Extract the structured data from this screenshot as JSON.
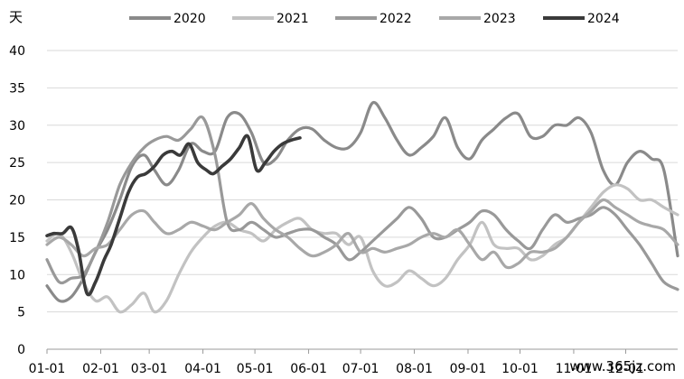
{
  "chart_data": {
    "type": "line",
    "ylabel": "天",
    "ylim": [
      0,
      40
    ],
    "yticks": [
      0,
      5,
      10,
      15,
      20,
      25,
      30,
      35,
      40
    ],
    "x_start": "01-01",
    "x_end": "12-31",
    "x_tick_labels": [
      "01-01",
      "02-01",
      "03-01",
      "04-01",
      "05-01",
      "06-01",
      "07-01",
      "08-01",
      "09-01",
      "10-01",
      "11-01",
      "12-01"
    ],
    "legend_position": "top",
    "grid": "horizontal",
    "series": [
      {
        "name": "2020",
        "color": "#8a8a8a",
        "x": [
          "01-01",
          "01-08",
          "01-15",
          "01-22",
          "01-29",
          "02-05",
          "02-12",
          "02-19",
          "02-26",
          "03-04",
          "03-11",
          "03-18",
          "03-25",
          "04-01",
          "04-08",
          "04-15",
          "04-22",
          "04-29",
          "05-06",
          "05-13",
          "05-20",
          "05-27",
          "06-03",
          "06-10",
          "06-17",
          "06-24",
          "07-01",
          "07-08",
          "07-15",
          "07-22",
          "07-29",
          "08-05",
          "08-12",
          "08-19",
          "08-26",
          "09-02",
          "09-09",
          "09-16",
          "09-23",
          "09-30",
          "10-07",
          "10-14",
          "10-21",
          "10-28",
          "11-04",
          "11-11",
          "11-18",
          "11-25",
          "12-02",
          "12-09",
          "12-16",
          "12-23",
          "12-31"
        ],
        "values": [
          8.5,
          6.5,
          7,
          9.5,
          13,
          16,
          20,
          24.5,
          26,
          24,
          22,
          24,
          27.5,
          26.5,
          26.5,
          31,
          31.5,
          29,
          25,
          25.5,
          28,
          29.5,
          29.5,
          28,
          27,
          27,
          29,
          33,
          31,
          28,
          26,
          27,
          28.5,
          31,
          27,
          25.5,
          28,
          29.5,
          31,
          31.5,
          28.5,
          28.5,
          30,
          30,
          31,
          29,
          24,
          22,
          25,
          26.5,
          25.5,
          24,
          12.5
        ]
      },
      {
        "name": "2021",
        "color": "#c2c2c2",
        "x": [
          "01-01",
          "01-08",
          "01-15",
          "01-22",
          "01-29",
          "02-05",
          "02-12",
          "02-19",
          "02-26",
          "03-04",
          "03-11",
          "03-18",
          "03-25",
          "04-01",
          "04-08",
          "04-15",
          "04-22",
          "04-29",
          "05-06",
          "05-13",
          "05-20",
          "05-27",
          "06-03",
          "06-10",
          "06-17",
          "06-24",
          "07-01",
          "07-08",
          "07-15",
          "07-22",
          "07-29",
          "08-05",
          "08-12",
          "08-19",
          "08-26",
          "09-02",
          "09-09",
          "09-16",
          "09-23",
          "09-30",
          "10-07",
          "10-14",
          "10-21",
          "10-28",
          "11-04",
          "11-11",
          "11-18",
          "11-25",
          "12-02",
          "12-09",
          "12-16",
          "12-23",
          "12-31"
        ],
        "values": [
          14.5,
          15.5,
          13,
          9,
          6.5,
          7,
          5,
          6,
          7.5,
          5,
          6.5,
          10,
          13,
          15,
          16.5,
          17,
          16,
          15.5,
          14.5,
          16,
          17,
          17.5,
          16,
          15.5,
          15.5,
          14,
          15,
          10.5,
          8.5,
          9,
          10.5,
          9.5,
          8.5,
          9.5,
          12,
          14,
          17,
          14,
          13.5,
          13.5,
          12,
          12.5,
          14,
          15,
          17,
          19,
          21,
          22,
          21.5,
          20,
          20,
          19,
          18
        ]
      },
      {
        "name": "2022",
        "color": "#999999",
        "x": [
          "01-01",
          "01-08",
          "01-15",
          "01-22",
          "01-29",
          "02-05",
          "02-12",
          "02-19",
          "02-26",
          "03-04",
          "03-11",
          "03-18",
          "03-25",
          "04-01",
          "04-08",
          "04-15",
          "04-22",
          "04-29",
          "05-06",
          "05-13",
          "05-20",
          "05-27",
          "06-03",
          "06-10",
          "06-17",
          "06-24",
          "07-01",
          "07-08",
          "07-15",
          "07-22",
          "07-29",
          "08-05",
          "08-12",
          "08-19",
          "08-26",
          "09-02",
          "09-09",
          "09-16",
          "09-23",
          "09-30",
          "10-07",
          "10-14",
          "10-21",
          "10-28",
          "11-04",
          "11-11",
          "11-18",
          "11-25",
          "12-02",
          "12-09",
          "12-16",
          "12-23",
          "12-31"
        ],
        "values": [
          12,
          9,
          9.5,
          10,
          13,
          17,
          22,
          25,
          27,
          28,
          28.5,
          28,
          29.5,
          31,
          26,
          17,
          16,
          17,
          16,
          15,
          15.5,
          16,
          16,
          15,
          14,
          12,
          13,
          14.5,
          16,
          17.5,
          19,
          17.5,
          15,
          15,
          16,
          17,
          18.5,
          18,
          16,
          14.5,
          13.5,
          16,
          18,
          17,
          17.5,
          18,
          19,
          18,
          16,
          14,
          11.5,
          9,
          8
        ]
      },
      {
        "name": "2023",
        "color": "#a8a8a8",
        "x": [
          "01-01",
          "01-08",
          "01-15",
          "01-22",
          "01-29",
          "02-05",
          "02-12",
          "02-19",
          "02-26",
          "03-04",
          "03-11",
          "03-18",
          "03-25",
          "04-01",
          "04-08",
          "04-15",
          "04-22",
          "04-29",
          "05-06",
          "05-13",
          "05-20",
          "05-27",
          "06-03",
          "06-10",
          "06-17",
          "06-24",
          "07-01",
          "07-08",
          "07-15",
          "07-22",
          "07-29",
          "08-05",
          "08-12",
          "08-19",
          "08-26",
          "09-02",
          "09-09",
          "09-16",
          "09-23",
          "09-30",
          "10-07",
          "10-14",
          "10-21",
          "10-28",
          "11-04",
          "11-11",
          "11-18",
          "11-25",
          "12-02",
          "12-09",
          "12-16",
          "12-23",
          "12-31"
        ],
        "values": [
          14,
          15,
          14,
          12.5,
          13.5,
          14,
          16,
          18,
          18.5,
          17,
          15.5,
          16,
          17,
          16.5,
          16,
          17,
          18,
          19.5,
          17.5,
          16,
          15,
          13.5,
          12.5,
          13,
          14,
          15.5,
          13,
          13.5,
          13,
          13.5,
          14,
          15,
          15.5,
          15,
          16,
          14,
          12,
          13,
          11,
          11.5,
          13,
          13,
          13.5,
          15,
          17,
          18.5,
          20,
          19,
          18,
          17,
          16.5,
          16,
          14
        ]
      },
      {
        "name": "2024",
        "color": "#3a3a3a",
        "x": [
          "01-01",
          "01-05",
          "01-10",
          "01-15",
          "01-19",
          "01-24",
          "01-29",
          "02-03",
          "02-07",
          "02-12",
          "02-17",
          "02-22",
          "02-27",
          "03-04",
          "03-09",
          "03-14",
          "03-19",
          "03-24",
          "03-29",
          "04-03",
          "04-07",
          "04-12",
          "04-17",
          "04-22",
          "04-27",
          "05-02",
          "05-07",
          "05-12",
          "05-17",
          "05-22",
          "05-27"
        ],
        "values": [
          15.2,
          15.5,
          15.5,
          16.3,
          13.5,
          7.5,
          9,
          12,
          14,
          17.5,
          21,
          23,
          23.5,
          24.5,
          26,
          26.5,
          26,
          27.5,
          25,
          24,
          23.5,
          24.5,
          25.5,
          27,
          28.5,
          24,
          25,
          26.5,
          27.5,
          28,
          28.3
        ]
      }
    ]
  },
  "watermark": "www.365jz.com"
}
